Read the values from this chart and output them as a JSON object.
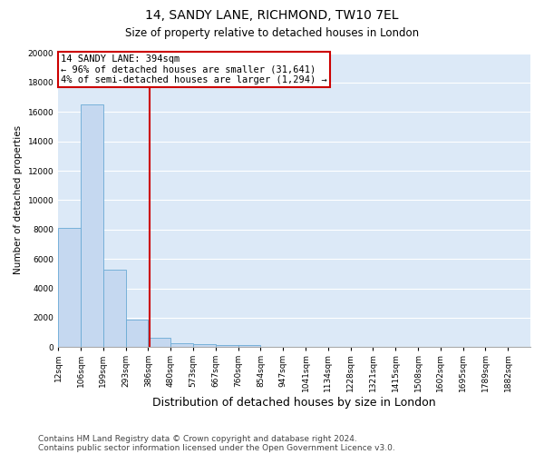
{
  "title": "14, SANDY LANE, RICHMOND, TW10 7EL",
  "subtitle": "Size of property relative to detached houses in London",
  "xlabel": "Distribution of detached houses by size in London",
  "ylabel": "Number of detached properties",
  "footnote1": "Contains HM Land Registry data © Crown copyright and database right 2024.",
  "footnote2": "Contains public sector information licensed under the Open Government Licence v3.0.",
  "property_label": "14 SANDY LANE: 394sqm",
  "annotation_line1": "← 96% of detached houses are smaller (31,641)",
  "annotation_line2": "4% of semi-detached houses are larger (1,294) →",
  "bin_labels": [
    "12sqm",
    "106sqm",
    "199sqm",
    "293sqm",
    "386sqm",
    "480sqm",
    "573sqm",
    "667sqm",
    "760sqm",
    "854sqm",
    "947sqm",
    "1041sqm",
    "1134sqm",
    "1228sqm",
    "1321sqm",
    "1415sqm",
    "1508sqm",
    "1602sqm",
    "1695sqm",
    "1789sqm",
    "1882sqm"
  ],
  "bar_heights": [
    8100,
    16500,
    5300,
    1850,
    650,
    300,
    200,
    175,
    130,
    50,
    0,
    0,
    0,
    0,
    0,
    0,
    0,
    0,
    0,
    0,
    0
  ],
  "bar_color": "#c5d8f0",
  "bar_edge_color": "#6aaad4",
  "red_line_bin": 4.08,
  "ylim": [
    0,
    20000
  ],
  "yticks": [
    0,
    2000,
    4000,
    6000,
    8000,
    10000,
    12000,
    14000,
    16000,
    18000,
    20000
  ],
  "bg_color": "#dce9f7",
  "grid_color": "#ffffff",
  "annotation_box_color": "#ffffff",
  "annotation_box_edge": "#cc0000",
  "title_fontsize": 10,
  "subtitle_fontsize": 8.5,
  "xlabel_fontsize": 9,
  "ylabel_fontsize": 7.5,
  "tick_fontsize": 6.5,
  "annotation_fontsize": 7.5,
  "footnote_fontsize": 6.5
}
